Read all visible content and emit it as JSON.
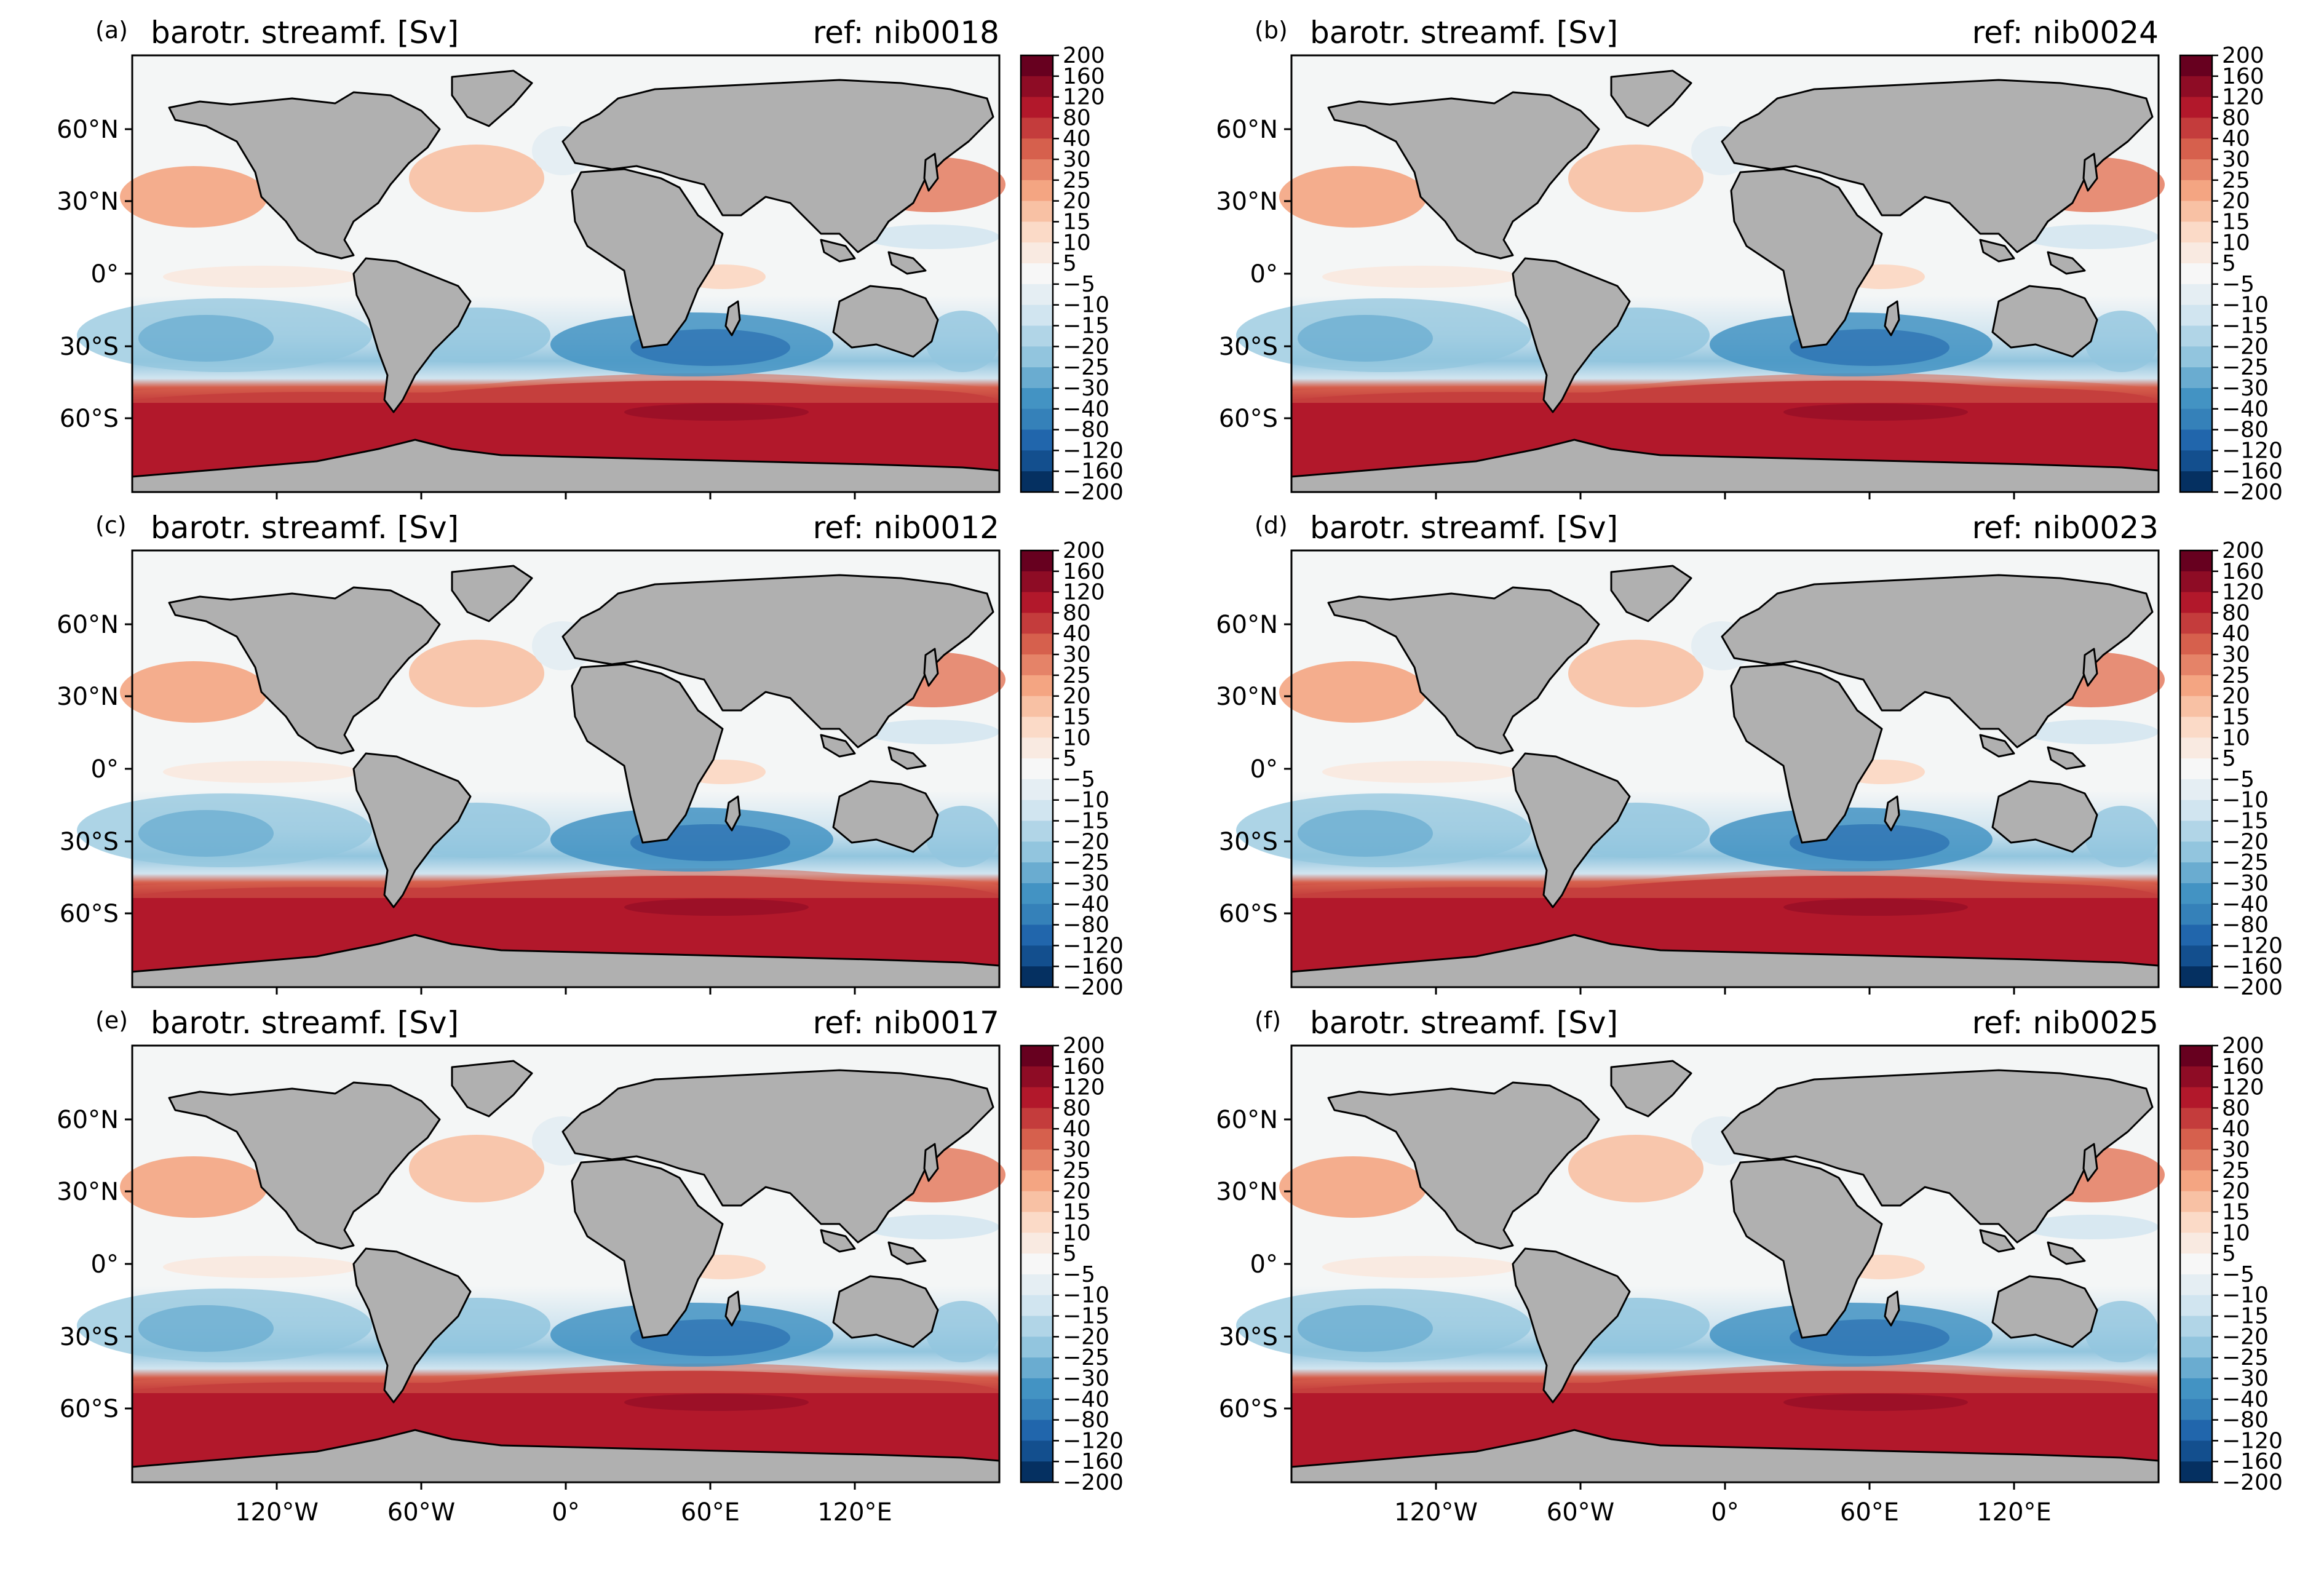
{
  "figure": {
    "panels": [
      {
        "label": "(a)",
        "title": "barotr. streamf. [Sv]",
        "ref": "ref: nib0018"
      },
      {
        "label": "(b)",
        "title": "barotr. streamf. [Sv]",
        "ref": "ref: nib0024"
      },
      {
        "label": "(c)",
        "title": "barotr. streamf. [Sv]",
        "ref": "ref: nib0012"
      },
      {
        "label": "(d)",
        "title": "barotr. streamf. [Sv]",
        "ref": "ref: nib0023"
      },
      {
        "label": "(e)",
        "title": "barotr. streamf. [Sv]",
        "ref": "ref: nib0017"
      },
      {
        "label": "(f)",
        "title": "barotr. streamf. [Sv]",
        "ref": "ref: nib0025"
      }
    ],
    "lat_ticks": [
      "60°N",
      "30°N",
      "0°",
      "30°S",
      "60°S"
    ],
    "lon_ticks": [
      "120°W",
      "60°W",
      "0°",
      "60°E",
      "120°E"
    ],
    "colorbar": {
      "levels": [
        "200",
        "160",
        "120",
        "80",
        "40",
        "30",
        "25",
        "20",
        "15",
        "10",
        "5",
        "−5",
        "−10",
        "−15",
        "−20",
        "−25",
        "−30",
        "−40",
        "−80",
        "−120",
        "−160",
        "−200"
      ],
      "colors": [
        "#67001f",
        "#8e0c25",
        "#b2182b",
        "#c43c3c",
        "#d6604d",
        "#e58368",
        "#f4a582",
        "#f8c1a4",
        "#fbdac7",
        "#f9eae1",
        "#f7f7f7",
        "#e5eef3",
        "#d1e5f0",
        "#b1d5e7",
        "#92c5de",
        "#6aacd0",
        "#4393c3",
        "#3581b9",
        "#2166ac",
        "#134f8e",
        "#053061"
      ]
    },
    "land_color": "#b0b0b0",
    "ocean_base_color": "#f4f6f6"
  }
}
